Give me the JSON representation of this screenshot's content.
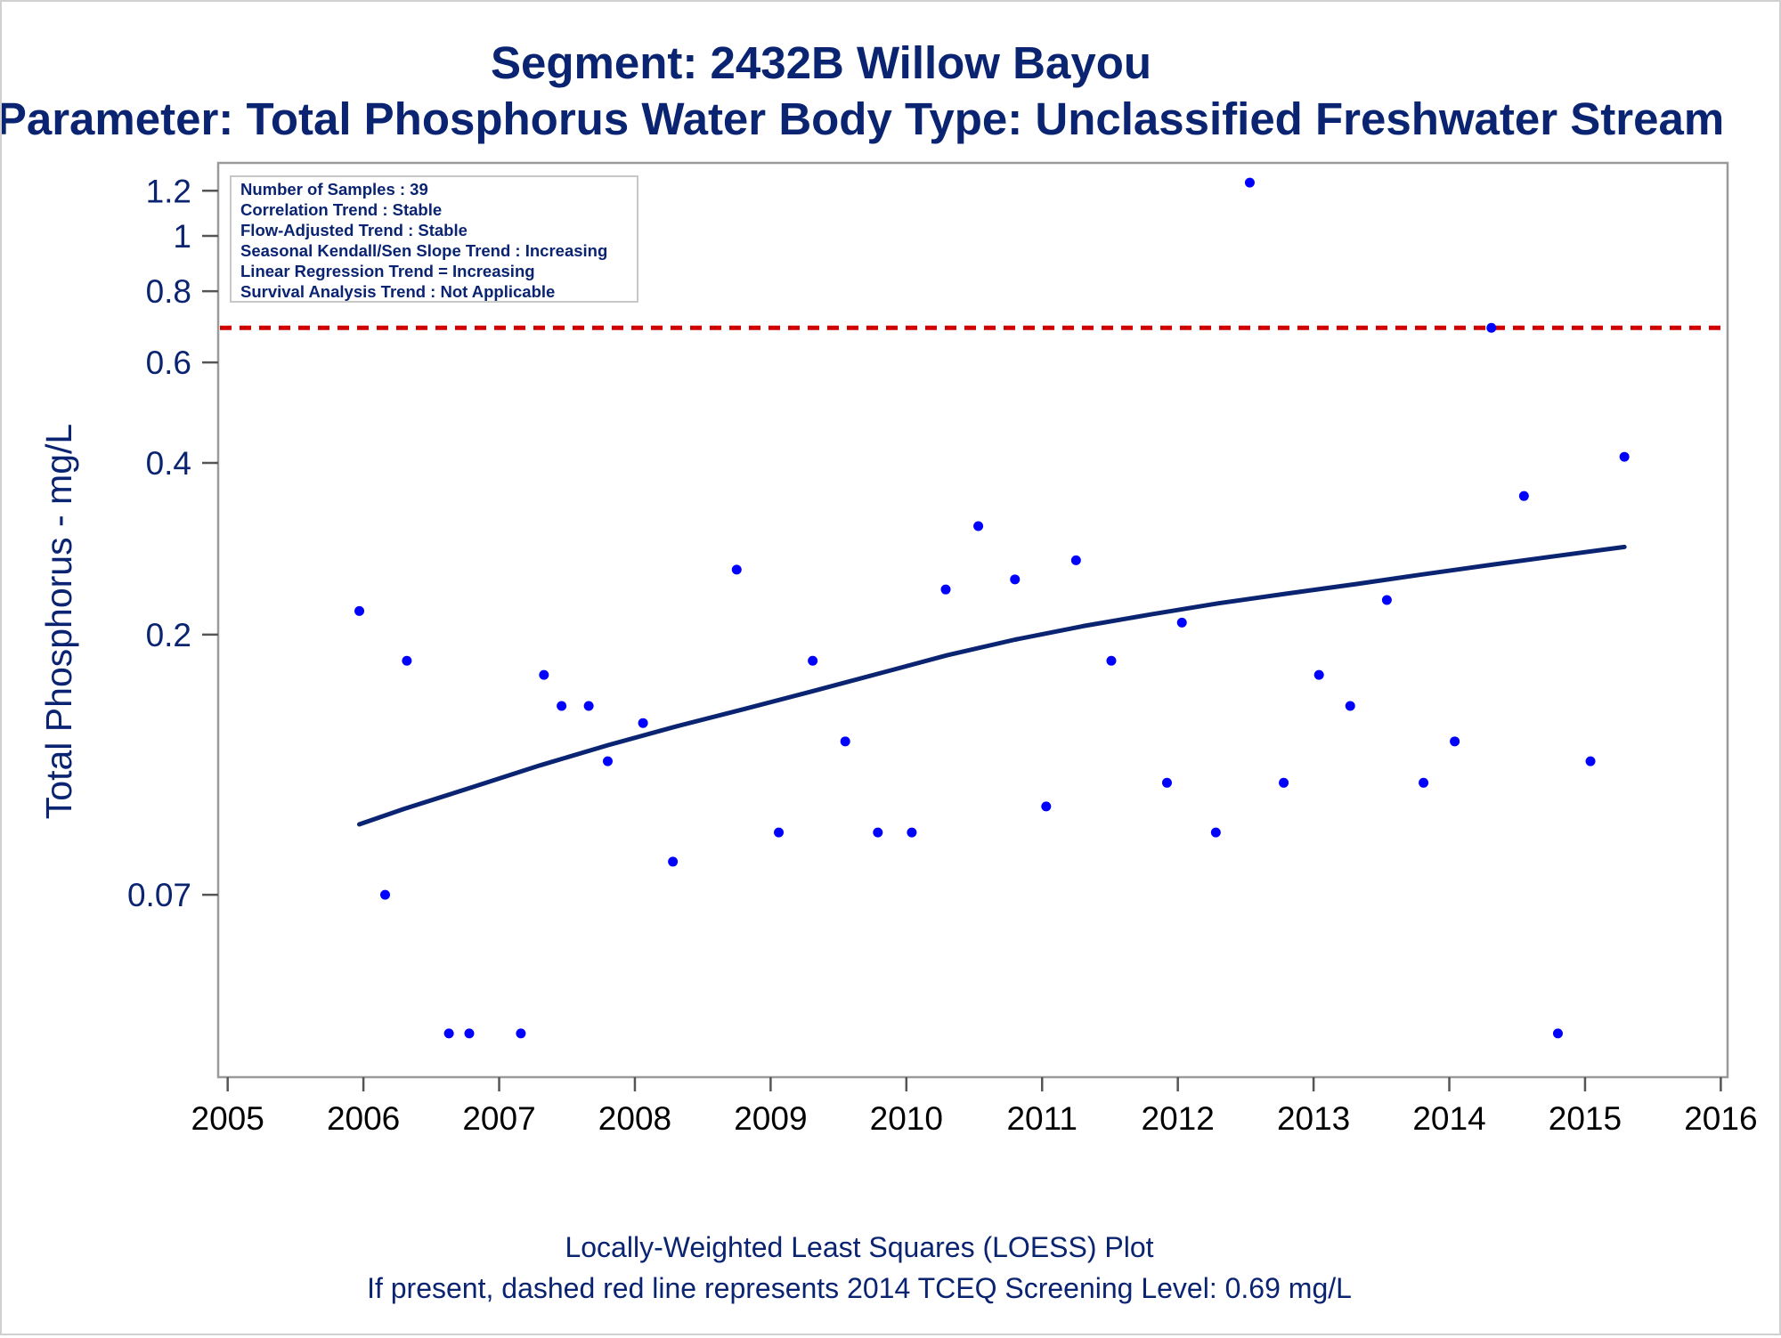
{
  "chart_data": {
    "type": "scatter",
    "title": "Segment: 2432B  Willow Bayou",
    "subtitle": "Parameter: Total Phosphorus   Water Body Type: Unclassified Freshwater Stream",
    "ylabel": "Total Phosphorus - mg/L",
    "xlabel": "",
    "yscale": "log",
    "ylim": [
      0.035,
      1.3
    ],
    "xlim": [
      2004.93,
      2016.05
    ],
    "xticks": [
      "2005",
      "2006",
      "2007",
      "2008",
      "2009",
      "2010",
      "2011",
      "2012",
      "2013",
      "2014",
      "2015",
      "2016"
    ],
    "yticks": [
      {
        "value": 0.07,
        "label": "0.07"
      },
      {
        "value": 0.2,
        "label": "0.2"
      },
      {
        "value": 0.4,
        "label": "0.4"
      },
      {
        "value": 0.6,
        "label": "0.6"
      },
      {
        "value": 0.8,
        "label": "0.8"
      },
      {
        "value": 1.0,
        "label": "1"
      },
      {
        "value": 1.2,
        "label": "1.2"
      }
    ],
    "grid": false,
    "legend_position": "top-left",
    "stats": [
      "Number of Samples : 39",
      "Correlation Trend : Stable",
      "Flow-Adjusted Trend : Stable",
      "Seasonal Kendall/Sen Slope Trend : Increasing",
      "Linear Regression Trend = Increasing",
      "Survival Analysis Trend : Not Applicable"
    ],
    "screening_level": {
      "value": 0.69,
      "color": "#d00000",
      "style": "dashed"
    },
    "point_color": "#0000ff",
    "loess_color": "#0a2472",
    "points": [
      {
        "x": 2005.97,
        "y": 0.22
      },
      {
        "x": 2006.16,
        "y": 0.07
      },
      {
        "x": 2006.32,
        "y": 0.18
      },
      {
        "x": 2006.63,
        "y": 0.04
      },
      {
        "x": 2006.78,
        "y": 0.04
      },
      {
        "x": 2007.16,
        "y": 0.04
      },
      {
        "x": 2007.33,
        "y": 0.17
      },
      {
        "x": 2007.46,
        "y": 0.15
      },
      {
        "x": 2007.66,
        "y": 0.15
      },
      {
        "x": 2007.8,
        "y": 0.12
      },
      {
        "x": 2008.06,
        "y": 0.14
      },
      {
        "x": 2008.28,
        "y": 0.08
      },
      {
        "x": 2008.75,
        "y": 0.26
      },
      {
        "x": 2009.06,
        "y": 0.09
      },
      {
        "x": 2009.31,
        "y": 0.18
      },
      {
        "x": 2009.55,
        "y": 0.13
      },
      {
        "x": 2009.79,
        "y": 0.09
      },
      {
        "x": 2010.04,
        "y": 0.09
      },
      {
        "x": 2010.29,
        "y": 0.24
      },
      {
        "x": 2010.53,
        "y": 0.31
      },
      {
        "x": 2010.8,
        "y": 0.25
      },
      {
        "x": 2011.03,
        "y": 0.1
      },
      {
        "x": 2011.25,
        "y": 0.27
      },
      {
        "x": 2011.51,
        "y": 0.18
      },
      {
        "x": 2011.92,
        "y": 0.11
      },
      {
        "x": 2012.03,
        "y": 0.21
      },
      {
        "x": 2012.28,
        "y": 0.09
      },
      {
        "x": 2012.53,
        "y": 1.24
      },
      {
        "x": 2012.78,
        "y": 0.11
      },
      {
        "x": 2013.04,
        "y": 0.17
      },
      {
        "x": 2013.27,
        "y": 0.15
      },
      {
        "x": 2013.54,
        "y": 0.23
      },
      {
        "x": 2013.81,
        "y": 0.11
      },
      {
        "x": 2014.04,
        "y": 0.13
      },
      {
        "x": 2014.31,
        "y": 0.69
      },
      {
        "x": 2014.55,
        "y": 0.35
      },
      {
        "x": 2014.8,
        "y": 0.04
      },
      {
        "x": 2015.04,
        "y": 0.12
      },
      {
        "x": 2015.29,
        "y": 0.41
      }
    ],
    "loess": [
      {
        "x": 2005.97,
        "y": 0.093
      },
      {
        "x": 2006.3,
        "y": 0.099
      },
      {
        "x": 2006.8,
        "y": 0.108
      },
      {
        "x": 2007.3,
        "y": 0.118
      },
      {
        "x": 2007.8,
        "y": 0.128
      },
      {
        "x": 2008.3,
        "y": 0.138
      },
      {
        "x": 2008.8,
        "y": 0.148
      },
      {
        "x": 2009.3,
        "y": 0.159
      },
      {
        "x": 2009.8,
        "y": 0.171
      },
      {
        "x": 2010.3,
        "y": 0.184
      },
      {
        "x": 2010.8,
        "y": 0.196
      },
      {
        "x": 2011.3,
        "y": 0.207
      },
      {
        "x": 2011.8,
        "y": 0.217
      },
      {
        "x": 2012.3,
        "y": 0.227
      },
      {
        "x": 2012.8,
        "y": 0.236
      },
      {
        "x": 2013.3,
        "y": 0.245
      },
      {
        "x": 2013.8,
        "y": 0.255
      },
      {
        "x": 2014.3,
        "y": 0.265
      },
      {
        "x": 2014.8,
        "y": 0.275
      },
      {
        "x": 2015.29,
        "y": 0.285
      }
    ],
    "footer": [
      "Locally-Weighted Least Squares (LOESS) Plot",
      "If present, dashed red line represents 2014 TCEQ Screening Level: 0.69 mg/L"
    ]
  }
}
